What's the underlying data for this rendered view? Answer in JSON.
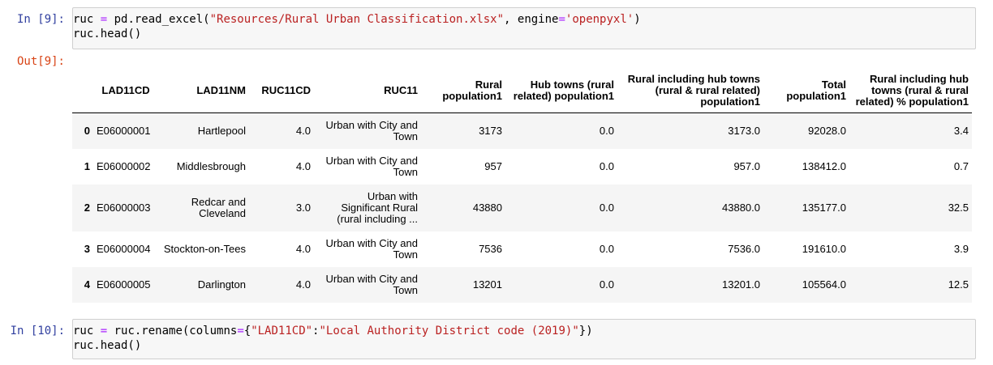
{
  "cells": {
    "in9": {
      "prompt": "In [9]:",
      "line1": {
        "a": "ruc ",
        "eq": "=",
        "b": " pd.read_excel(",
        "s1": "\"Resources/Rural Urban Classification.xlsx\"",
        "c": ", engine",
        "eq2": "=",
        "s2": "'openpyxl'",
        "d": ")"
      },
      "line2": "ruc.head()"
    },
    "out9": {
      "prompt": "Out[9]:"
    },
    "in10": {
      "prompt": "In [10]:",
      "line1": {
        "a": "ruc ",
        "eq": "=",
        "b": " ruc.rename(columns",
        "eq2": "=",
        "c": "{",
        "s1": "\"LAD11CD\"",
        "colon": ":",
        "s2": "\"Local Authority District code (2019)\"",
        "d": "})"
      },
      "line2": "ruc.head()"
    }
  },
  "dataframe": {
    "columns": [
      "",
      "LAD11CD",
      "LAD11NM",
      "RUC11CD",
      "RUC11",
      "Rural population1",
      "Hub towns (rural related) population1",
      "Rural including hub towns (rural & rural related) population1",
      "Total population1",
      "Rural including hub towns (rural & rural related) % population1"
    ],
    "rows": [
      [
        "0",
        "E06000001",
        "Hartlepool",
        "4.0",
        "Urban with City and Town",
        "3173",
        "0.0",
        "3173.0",
        "92028.0",
        "3.4"
      ],
      [
        "1",
        "E06000002",
        "Middlesbrough",
        "4.0",
        "Urban with City and Town",
        "957",
        "0.0",
        "957.0",
        "138412.0",
        "0.7"
      ],
      [
        "2",
        "E06000003",
        "Redcar and Cleveland",
        "3.0",
        "Urban with Significant Rural (rural including ...",
        "43880",
        "0.0",
        "43880.0",
        "135177.0",
        "32.5"
      ],
      [
        "3",
        "E06000004",
        "Stockton-on-Tees",
        "4.0",
        "Urban with City and Town",
        "7536",
        "0.0",
        "7536.0",
        "191610.0",
        "3.9"
      ],
      [
        "4",
        "E06000005",
        "Darlington",
        "4.0",
        "Urban with City and Town",
        "13201",
        "0.0",
        "13201.0",
        "105564.0",
        "12.5"
      ]
    ]
  }
}
